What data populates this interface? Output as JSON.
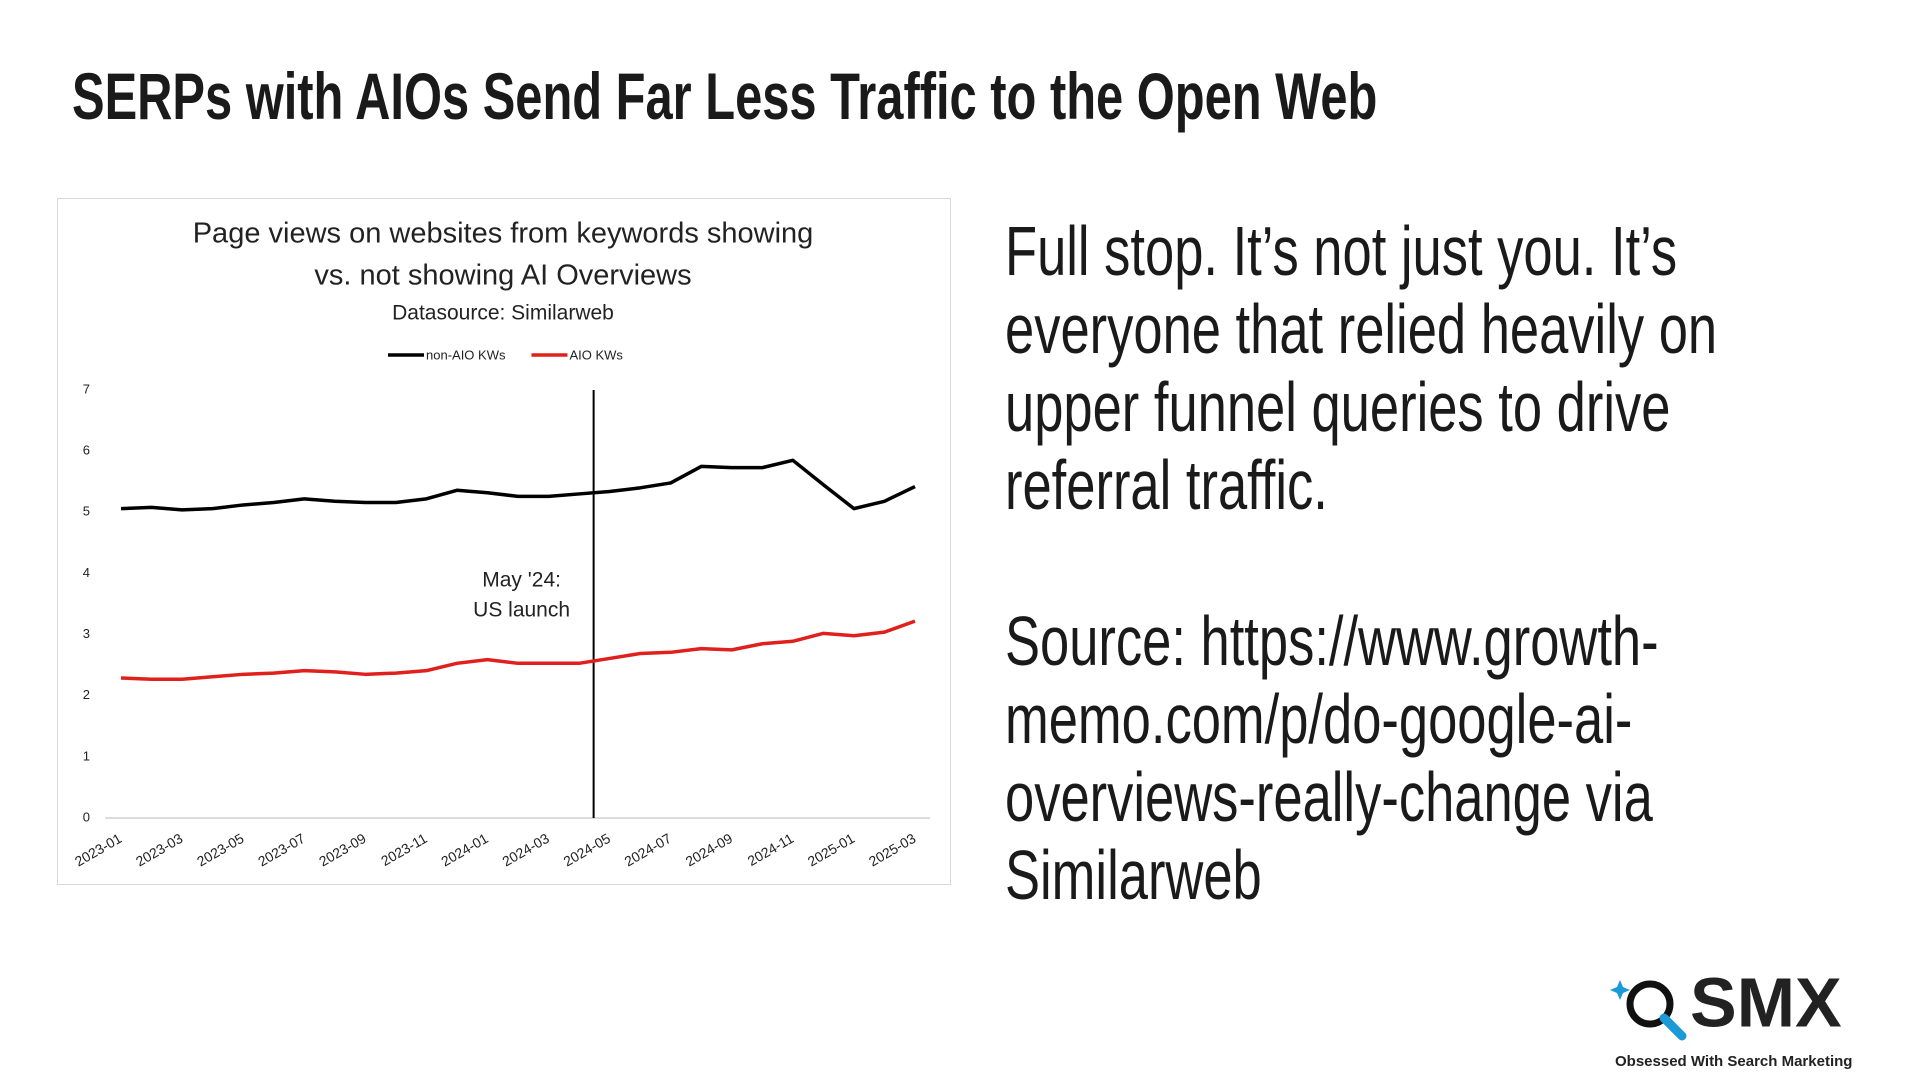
{
  "slide": {
    "title": "SERPs with AIOs Send Far Less Traffic to the Open Web",
    "paragraphs": [
      "Full stop. It’s not just you. It’s everyone that relied heavily on upper funnel queries to drive referral traffic.",
      "Source: https://www.growth-memo.com/p/do-google-ai-overviews-really-change via Similarweb"
    ],
    "logo": {
      "name": "SMX",
      "tagline": "Obsessed With Search Marketing"
    }
  },
  "chart_data": {
    "type": "line",
    "title": [
      "Page views on websites from keywords showing",
      "vs. not showing AI Overviews"
    ],
    "subtitle": "Datasource: Similarweb",
    "categories": [
      "2023-01",
      null,
      "2023-03",
      null,
      "2023-05",
      null,
      "2023-07",
      null,
      "2023-09",
      null,
      "2023-11",
      null,
      "2024-01",
      null,
      "2024-03",
      null,
      "2024-05",
      null,
      "2024-07",
      null,
      "2024-09",
      null,
      "2024-11",
      null,
      "2025-01",
      null,
      "2025-03"
    ],
    "series": [
      {
        "name": "non-AIO KWs",
        "color": "#000000",
        "values": [
          5.06,
          5.08,
          5.04,
          5.06,
          5.12,
          5.16,
          5.22,
          5.18,
          5.16,
          5.16,
          5.22,
          5.36,
          5.32,
          5.26,
          5.26,
          5.3,
          5.34,
          5.4,
          5.48,
          5.75,
          5.73,
          5.73,
          5.85,
          5.45,
          5.06,
          5.18,
          5.42
        ]
      },
      {
        "name": "AIO KWs",
        "color": "#e0201c",
        "values": [
          2.29,
          2.27,
          2.27,
          2.31,
          2.35,
          2.37,
          2.41,
          2.39,
          2.35,
          2.37,
          2.41,
          2.53,
          2.59,
          2.53,
          2.53,
          2.53,
          2.61,
          2.69,
          2.71,
          2.77,
          2.75,
          2.85,
          2.89,
          3.02,
          2.98,
          3.04,
          3.22
        ]
      }
    ],
    "ylim": [
      0,
      7
    ],
    "yticks": [
      0,
      1,
      2,
      3,
      4,
      5,
      6,
      7
    ],
    "grid": false,
    "legend": "top",
    "annotation": {
      "x": "2024-05",
      "lines": [
        "May '24:",
        "US launch"
      ]
    }
  }
}
